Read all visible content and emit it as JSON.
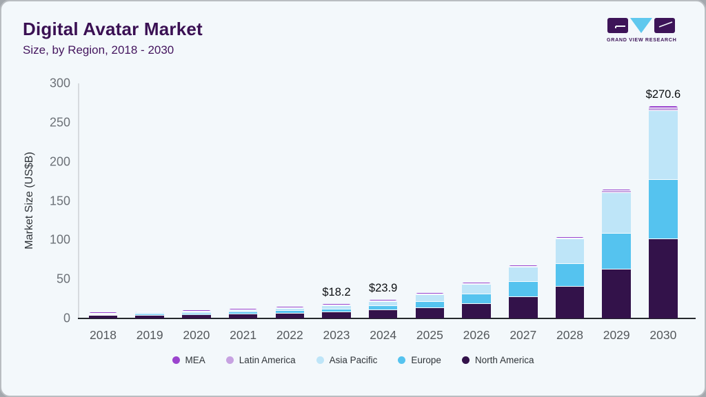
{
  "header": {
    "title": "Digital Avatar Market",
    "subtitle": "Size, by Region, 2018 - 2030"
  },
  "logo": {
    "caption": "GRAND VIEW RESEARCH",
    "block_color": "#3d1458",
    "triangle_color": "#5fc8ee"
  },
  "chart_data": {
    "type": "bar",
    "stacked": true,
    "title": "Digital Avatar Market Size, by Region, 2018 - 2030",
    "xlabel": "",
    "ylabel": "Market Size (US$B)",
    "ylim": [
      0,
      300
    ],
    "yticks": [
      0,
      50,
      100,
      150,
      200,
      250,
      300
    ],
    "grid": false,
    "legend_position": "bottom",
    "categories": [
      "2018",
      "2019",
      "2020",
      "2021",
      "2022",
      "2023",
      "2024",
      "2025",
      "2026",
      "2027",
      "2028",
      "2029",
      "2030"
    ],
    "series": [
      {
        "name": "North America",
        "color": "#33124a",
        "values": [
          5.0,
          5.5,
          6.2,
          7.0,
          7.9,
          9.2,
          11.5,
          14.4,
          19.7,
          28.0,
          41.4,
          63.5,
          102.3
        ]
      },
      {
        "name": "Europe",
        "color": "#55c3ef",
        "values": [
          1.2,
          1.5,
          1.9,
          2.4,
          3.2,
          4.0,
          5.5,
          8.0,
          12.0,
          19.5,
          29.6,
          46.0,
          75.5
        ]
      },
      {
        "name": "Asia Pacific",
        "color": "#bee5f8",
        "values": [
          1.2,
          1.5,
          1.9,
          2.4,
          3.3,
          4.2,
          6.0,
          8.8,
          12.5,
          19.0,
          31.0,
          52.0,
          88.0
        ]
      },
      {
        "name": "Latin America",
        "color": "#c7a2e1",
        "values": [
          0.4,
          0.4,
          0.5,
          0.5,
          0.6,
          0.6,
          0.7,
          0.9,
          1.0,
          1.2,
          1.6,
          2.3,
          3.6
        ]
      },
      {
        "name": "MEA",
        "color": "#9b44ce",
        "values": [
          0.2,
          0.2,
          0.2,
          0.2,
          0.2,
          0.2,
          0.2,
          0.3,
          0.3,
          0.4,
          0.5,
          0.7,
          1.2
        ]
      }
    ],
    "annotations": [
      {
        "category": "2023",
        "text": "$18.2"
      },
      {
        "category": "2024",
        "text": "$23.9"
      },
      {
        "category": "2030",
        "text": "$270.6"
      }
    ]
  }
}
